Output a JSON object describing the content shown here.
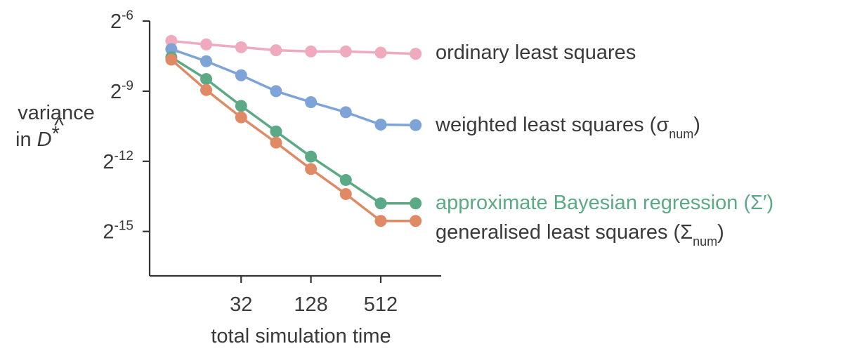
{
  "chart_data": {
    "type": "line",
    "title": "",
    "xlabel": "total simulation time",
    "ylabel": {
      "line1": "variance",
      "line2_prefix": "in ",
      "symbol": "D",
      "hat": "^",
      "star": "*"
    },
    "x": [
      8,
      16,
      32,
      64,
      128,
      256,
      512,
      1024
    ],
    "xscale": "log2",
    "xlim": [
      5.2,
      1700
    ],
    "xticks": [
      32,
      128,
      512
    ],
    "xtick_labels": [
      "32",
      "128",
      "512"
    ],
    "yscale": "log2",
    "ylim_exponent": [
      -16.9,
      -6
    ],
    "yticks_exponent": [
      -6,
      -9,
      -12,
      -15
    ],
    "ytick_base": "2",
    "ytick_exponent_labels": [
      "-6",
      "-9",
      "-12",
      "-15"
    ],
    "grid": false,
    "legend": "inline labels at the right end of each line",
    "series": [
      {
        "key": "ols",
        "name": "ordinary least squares",
        "color": "#efaabd",
        "y_exponent": [
          -6.85,
          -7.0,
          -7.12,
          -7.25,
          -7.3,
          -7.3,
          -7.35,
          -7.4
        ]
      },
      {
        "key": "wls",
        "name": "weighted least squares (σ",
        "name_sub": "num",
        "name_end": ")",
        "color": "#7ea3d7",
        "y_exponent": [
          -7.2,
          -7.72,
          -8.32,
          -9.0,
          -9.47,
          -9.9,
          -10.43,
          -10.45
        ]
      },
      {
        "key": "abr",
        "name": "approximate Bayesian regression (Σ′)",
        "color": "#5baa85",
        "y_exponent": [
          -7.55,
          -8.48,
          -9.63,
          -10.72,
          -11.8,
          -12.8,
          -13.8,
          -13.8
        ]
      },
      {
        "key": "gls",
        "name": "generalised least squares (Σ",
        "name_sub": "num",
        "name_end": ")",
        "color": "#e08a65",
        "y_exponent": [
          -7.65,
          -8.95,
          -10.12,
          -11.2,
          -12.33,
          -13.4,
          -14.55,
          -14.55
        ]
      }
    ]
  }
}
